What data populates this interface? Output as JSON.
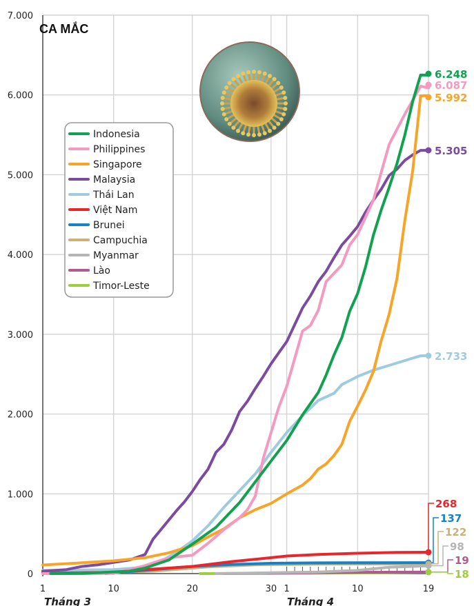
{
  "chart_data": {
    "type": "line",
    "title": "CA MẮC",
    "xlabel_months": [
      "Tháng 3",
      "Tháng 4"
    ],
    "x_tick_labels": [
      "1",
      "10",
      "20",
      "30",
      "1",
      "10",
      "19"
    ],
    "x_tick_days": [
      0,
      9,
      19,
      29,
      31,
      40,
      49
    ],
    "y_tick_labels": [
      "0",
      "1.000",
      "2.000",
      "3.000",
      "4.000",
      "5.000",
      "6.000",
      "7.000"
    ],
    "y_ticks": [
      0,
      1000,
      2000,
      3000,
      4000,
      5000,
      6000,
      7000
    ],
    "ylim": [
      0,
      7000
    ],
    "xlim_days": [
      0,
      49
    ],
    "x_unit_note": "day index from 1 March (0) to 19 April (49)",
    "grid": true,
    "legend_position": "left",
    "series": [
      {
        "name": "Indonesia",
        "color": "#12a150",
        "final_label": "6.248",
        "points": [
          [
            1,
            0
          ],
          [
            5,
            2
          ],
          [
            11,
            30
          ],
          [
            13,
            70
          ],
          [
            16,
            170
          ],
          [
            19,
            370
          ],
          [
            22,
            580
          ],
          [
            25,
            890
          ],
          [
            27,
            1150
          ],
          [
            29,
            1410
          ],
          [
            31,
            1670
          ],
          [
            33,
            1990
          ],
          [
            35,
            2270
          ],
          [
            36,
            2490
          ],
          [
            37,
            2740
          ],
          [
            38,
            2960
          ],
          [
            39,
            3290
          ],
          [
            40,
            3510
          ],
          [
            41,
            3840
          ],
          [
            42,
            4240
          ],
          [
            43,
            4560
          ],
          [
            44,
            4840
          ],
          [
            45,
            5140
          ],
          [
            46,
            5500
          ],
          [
            47,
            5920
          ],
          [
            48,
            6250
          ],
          [
            49,
            6248
          ]
        ]
      },
      {
        "name": "Philippines",
        "color": "#f49ac1",
        "final_label": "6.087",
        "points": [
          [
            0,
            0
          ],
          [
            9,
            3
          ],
          [
            13,
            100
          ],
          [
            16,
            200
          ],
          [
            19,
            230
          ],
          [
            21,
            380
          ],
          [
            23,
            550
          ],
          [
            25,
            700
          ],
          [
            26,
            800
          ],
          [
            27,
            970
          ],
          [
            28,
            1440
          ],
          [
            30,
            2090
          ],
          [
            31,
            2350
          ],
          [
            33,
            3040
          ],
          [
            34,
            3110
          ],
          [
            35,
            3300
          ],
          [
            36,
            3660
          ],
          [
            38,
            3870
          ],
          [
            39,
            4120
          ],
          [
            40,
            4250
          ],
          [
            42,
            4680
          ],
          [
            44,
            5380
          ],
          [
            46,
            5760
          ],
          [
            48,
            6110
          ],
          [
            49,
            6087
          ]
        ]
      },
      {
        "name": "Singapore",
        "color": "#f7a428",
        "final_label": "5.992",
        "points": [
          [
            0,
            108
          ],
          [
            4,
            130
          ],
          [
            9,
            160
          ],
          [
            13,
            200
          ],
          [
            16,
            260
          ],
          [
            19,
            350
          ],
          [
            21,
            460
          ],
          [
            23,
            560
          ],
          [
            25,
            700
          ],
          [
            27,
            800
          ],
          [
            29,
            880
          ],
          [
            31,
            1000
          ],
          [
            33,
            1110
          ],
          [
            34,
            1190
          ],
          [
            35,
            1310
          ],
          [
            36,
            1375
          ],
          [
            37,
            1480
          ],
          [
            38,
            1620
          ],
          [
            39,
            1910
          ],
          [
            40,
            2100
          ],
          [
            41,
            2300
          ],
          [
            42,
            2530
          ],
          [
            43,
            2920
          ],
          [
            44,
            3250
          ],
          [
            45,
            3700
          ],
          [
            46,
            4430
          ],
          [
            47,
            5050
          ],
          [
            48,
            5990
          ],
          [
            49,
            5992
          ]
        ]
      },
      {
        "name": "Malaysia",
        "color": "#7b4ba0",
        "final_label": "5.305",
        "points": [
          [
            0,
            30
          ],
          [
            3,
            50
          ],
          [
            5,
            90
          ],
          [
            7,
            110
          ],
          [
            9,
            140
          ],
          [
            11,
            170
          ],
          [
            13,
            240
          ],
          [
            14,
            430
          ],
          [
            15,
            550
          ],
          [
            16,
            670
          ],
          [
            17,
            790
          ],
          [
            18,
            900
          ],
          [
            19,
            1030
          ],
          [
            20,
            1180
          ],
          [
            21,
            1310
          ],
          [
            22,
            1520
          ],
          [
            23,
            1620
          ],
          [
            24,
            1800
          ],
          [
            25,
            2030
          ],
          [
            26,
            2160
          ],
          [
            27,
            2320
          ],
          [
            28,
            2470
          ],
          [
            29,
            2630
          ],
          [
            30,
            2770
          ],
          [
            31,
            2910
          ],
          [
            32,
            3120
          ],
          [
            33,
            3330
          ],
          [
            34,
            3480
          ],
          [
            35,
            3660
          ],
          [
            36,
            3790
          ],
          [
            37,
            3960
          ],
          [
            38,
            4120
          ],
          [
            39,
            4230
          ],
          [
            40,
            4350
          ],
          [
            41,
            4530
          ],
          [
            42,
            4680
          ],
          [
            43,
            4820
          ],
          [
            44,
            4990
          ],
          [
            45,
            5070
          ],
          [
            46,
            5180
          ],
          [
            47,
            5250
          ],
          [
            48,
            5305
          ],
          [
            49,
            5305
          ]
        ]
      },
      {
        "name": "Thái Lan",
        "color": "#9fcbe0",
        "final_label": "2.733",
        "points": [
          [
            0,
            40
          ],
          [
            9,
            50
          ],
          [
            13,
            80
          ],
          [
            15,
            150
          ],
          [
            17,
            270
          ],
          [
            19,
            410
          ],
          [
            21,
            600
          ],
          [
            23,
            830
          ],
          [
            25,
            1040
          ],
          [
            27,
            1250
          ],
          [
            29,
            1520
          ],
          [
            31,
            1770
          ],
          [
            33,
            1980
          ],
          [
            35,
            2170
          ],
          [
            37,
            2260
          ],
          [
            38,
            2370
          ],
          [
            40,
            2470
          ],
          [
            42,
            2550
          ],
          [
            44,
            2610
          ],
          [
            46,
            2670
          ],
          [
            48,
            2730
          ],
          [
            49,
            2733
          ]
        ]
      },
      {
        "name": "Việt Nam",
        "color": "#e8262b",
        "final_label": "268",
        "points": [
          [
            0,
            16
          ],
          [
            7,
            30
          ],
          [
            13,
            50
          ],
          [
            19,
            90
          ],
          [
            24,
            150
          ],
          [
            29,
            200
          ],
          [
            31,
            220
          ],
          [
            35,
            240
          ],
          [
            40,
            255
          ],
          [
            45,
            265
          ],
          [
            49,
            268
          ]
        ]
      },
      {
        "name": "Brunei",
        "color": "#1481c9",
        "final_label": "137",
        "points": [
          [
            8,
            0
          ],
          [
            14,
            50
          ],
          [
            19,
            90
          ],
          [
            24,
            115
          ],
          [
            29,
            130
          ],
          [
            35,
            135
          ],
          [
            49,
            137
          ]
        ]
      },
      {
        "name": "Campuchia",
        "color": "#c9b277",
        "final_label": "122",
        "points": [
          [
            5,
            0
          ],
          [
            14,
            30
          ],
          [
            21,
            85
          ],
          [
            27,
            110
          ],
          [
            35,
            118
          ],
          [
            49,
            122
          ]
        ]
      },
      {
        "name": "Myanmar",
        "color": "#b5b5b5",
        "final_label": "98",
        "points": [
          [
            22,
            0
          ],
          [
            29,
            10
          ],
          [
            35,
            20
          ],
          [
            40,
            40
          ],
          [
            44,
            80
          ],
          [
            49,
            98
          ]
        ]
      },
      {
        "name": "Lào",
        "color": "#b15a8f",
        "final_label": "19",
        "points": [
          [
            23,
            0
          ],
          [
            31,
            8
          ],
          [
            40,
            16
          ],
          [
            49,
            19
          ]
        ]
      },
      {
        "name": "Timor-Leste",
        "color": "#9ccf3e",
        "final_label": "18",
        "points": [
          [
            20,
            0
          ],
          [
            23,
            1
          ],
          [
            35,
            5
          ],
          [
            49,
            18
          ]
        ]
      }
    ]
  }
}
